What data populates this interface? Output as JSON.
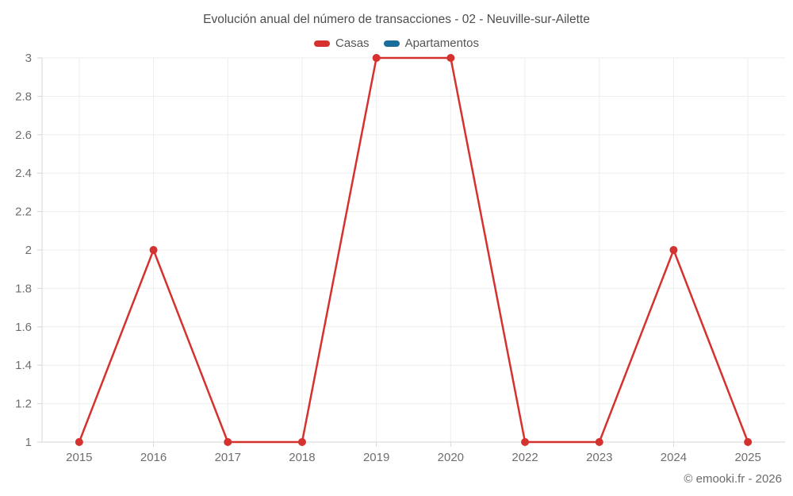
{
  "page": {
    "footer": "© emooki.fr - 2026"
  },
  "colors": {
    "casas_red": "#d5322f",
    "apartamentos_blue": "#1a6e9c",
    "grid_line": "#ededed",
    "axis_line": "#d6d6d6",
    "title_text": "#4e4e4e",
    "axis_text": "#6e6e6e",
    "legend_text": "#555555"
  },
  "chart_data": {
    "type": "line",
    "title": "Evolución anual del número de transacciones - 02 - Neuville-sur-Ailette",
    "categories": [
      "2015",
      "2016",
      "2017",
      "2018",
      "2019",
      "2020",
      "2022",
      "2023",
      "2024",
      "2025"
    ],
    "series": [
      {
        "name": "Casas",
        "color": "#d5322f",
        "values": [
          1,
          2,
          1,
          1,
          3,
          3,
          1,
          1,
          2,
          1
        ]
      },
      {
        "name": "Apartamentos",
        "color": "#1a6e9c",
        "values": []
      }
    ],
    "xlabel": "",
    "ylabel": "",
    "ylim": [
      1,
      3
    ],
    "ytick_step": 0.2,
    "grid": true,
    "legend_position": "top"
  }
}
